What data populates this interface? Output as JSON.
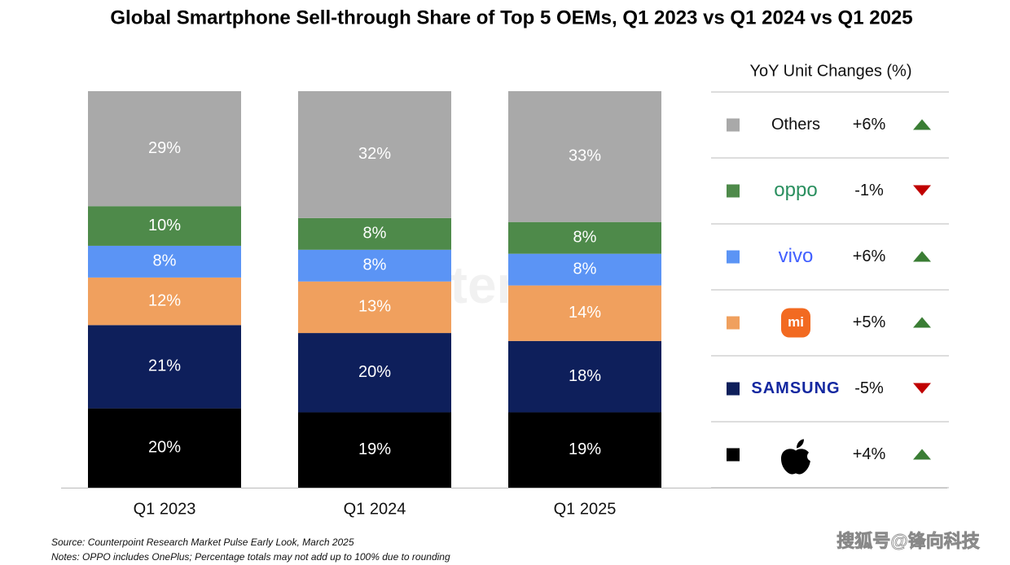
{
  "chart_data": {
    "type": "stacked_bar",
    "title": "Global Smartphone Sell-through Share of Top 5 OEMs, Q1 2023 vs Q1 2024 vs Q1 2025",
    "categories": [
      "Q1 2023",
      "Q1 2024",
      "Q1 2025"
    ],
    "ylim": [
      0,
      100
    ],
    "series": [
      {
        "color": "#000000",
        "values": [
          20,
          19,
          19
        ],
        "value_labels": [
          "20%",
          "19%",
          "19%"
        ],
        "yoy": 4,
        "yoy_label": "+4%"
      },
      {
        "name": "SAMSUNG",
        "color": "#0e1f5b",
        "values": [
          21,
          20,
          18
        ],
        "value_labels": [
          "21%",
          "20%",
          "18%"
        ],
        "yoy": -5,
        "yoy_label": "-5%"
      },
      {
        "name": "mi",
        "color": "#f0a05e",
        "values": [
          12,
          13,
          14
        ],
        "value_labels": [
          "12%",
          "13%",
          "14%"
        ],
        "yoy": 5,
        "yoy_label": "+5%"
      },
      {
        "name": "vivo",
        "color": "#5b94f5",
        "values": [
          8,
          8,
          8
        ],
        "value_labels": [
          "8%",
          "8%",
          "8%"
        ],
        "yoy": 6,
        "yoy_label": "+6%"
      },
      {
        "name": "oppo",
        "color": "#4e8a4a",
        "values": [
          10,
          8,
          8
        ],
        "value_labels": [
          "10%",
          "8%",
          "8%"
        ],
        "yoy": -1,
        "yoy_label": "-1%"
      },
      {
        "name": "Others",
        "color": "#a9a9a9",
        "values": [
          29,
          32,
          33
        ],
        "value_labels": [
          "29%",
          "32%",
          "33%"
        ],
        "yoy": 6,
        "yoy_label": "+6%"
      }
    ],
    "legend_title": "YoY Unit Changes (%)",
    "watermark": "Counterpoint",
    "source": "Source: Counterpoint Research Market Pulse Early Look, March 2025",
    "notes": "Notes: OPPO includes OnePlus; Percentage totals may not add up to 100% due to rounding",
    "publisher_mark": "搜狐号@锋向科技"
  }
}
